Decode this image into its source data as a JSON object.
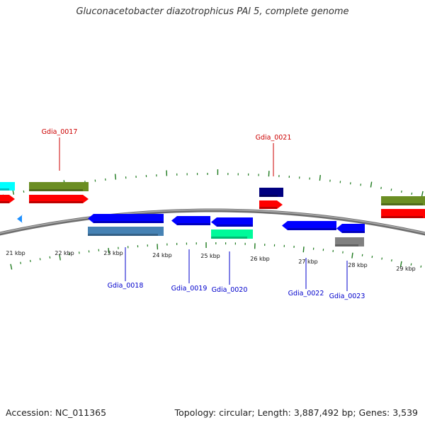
{
  "title": "Gluconacetobacter diazotrophicus PAl 5, complete genome",
  "footer": {
    "accession": "Accession: NC_011365",
    "topology": "Topology: circular; Length: 3,887,492 bp; Genes: 3,539"
  },
  "colors": {
    "backbone": "#8c8c8c",
    "tick": "#1e7a1e",
    "forward_label": "#cc0000",
    "reverse_label": "#0000cc"
  },
  "axis_labels": [
    "21 kbp",
    "22 kbp",
    "23 kbp",
    "24 kbp",
    "25 kbp",
    "26 kbp",
    "27 kbp",
    "28 kbp",
    "29 kbp"
  ],
  "gene_labels": {
    "forward": [
      "Gdia_0017",
      "Gdia_0021"
    ],
    "reverse": [
      "Gdia_0018",
      "Gdia_0019",
      "Gdia_0020",
      "Gdia_0022",
      "Gdia_0023"
    ]
  },
  "features": [
    {
      "name": "cyan-forward-feature",
      "color": "#00ffff"
    },
    {
      "name": "red-forward-feature-left",
      "color": "#ff0000"
    },
    {
      "name": "olive-feature-0017",
      "color": "#6b8e23"
    },
    {
      "name": "red-feature-0017",
      "color": "#ff0000"
    },
    {
      "name": "navy-feature-0021",
      "color": "#000080"
    },
    {
      "name": "red-feature-0021",
      "color": "#ff0000"
    },
    {
      "name": "olive-feature-right",
      "color": "#6b8e23"
    },
    {
      "name": "red-feature-right",
      "color": "#ff0000"
    },
    {
      "name": "light-blue-small-feature",
      "color": "#1e90ff"
    },
    {
      "name": "blue-feature-0018",
      "color": "#0000ff"
    },
    {
      "name": "steelblue-feature-0018",
      "color": "#4682b4"
    },
    {
      "name": "blue-feature-0019",
      "color": "#0000ff"
    },
    {
      "name": "blue-feature-0020",
      "color": "#0000ff"
    },
    {
      "name": "aquamarine-feature-0020",
      "color": "#00fa9a"
    },
    {
      "name": "blue-feature-0022",
      "color": "#0000ff"
    },
    {
      "name": "blue-feature-0023",
      "color": "#0000ff"
    },
    {
      "name": "gray-feature-0023",
      "color": "#808080"
    }
  ]
}
